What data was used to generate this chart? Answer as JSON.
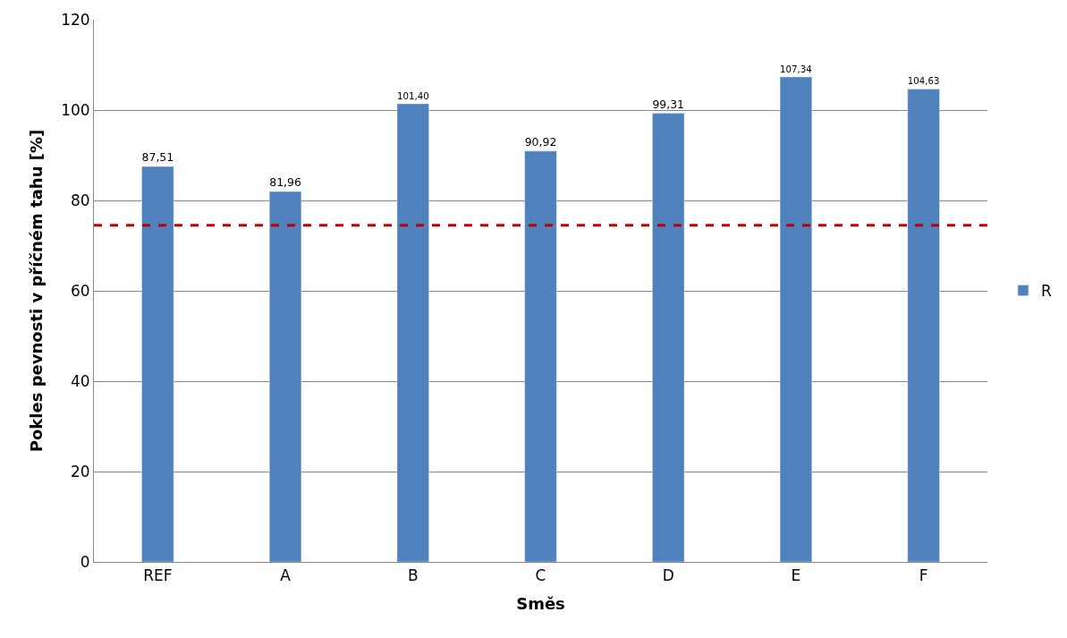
{
  "chart_data": {
    "type": "bar",
    "xlabel": "Směs",
    "ylabel": "Pokles pevnosti v příčném tahu [%]",
    "categories": [
      "REF",
      "A",
      "B",
      "C",
      "D",
      "E",
      "F"
    ],
    "series": [
      {
        "name": "R",
        "color": "#4f81bd",
        "values": [
          87.51,
          81.96,
          101.4,
          90.92,
          99.31,
          107.34,
          104.63
        ],
        "value_labels": [
          "87,51",
          "81,96",
          "101,40",
          "90,92",
          "99,31",
          "107,34",
          "104,63"
        ]
      }
    ],
    "ylim": [
      0,
      120
    ],
    "yticks": [
      0,
      20,
      40,
      60,
      80,
      100,
      120
    ],
    "grid": "y",
    "legend": "right",
    "ref_lines": [
      {
        "axis": "y",
        "value": 74.5,
        "color": "#c00000",
        "line_style": "dashed"
      }
    ]
  }
}
